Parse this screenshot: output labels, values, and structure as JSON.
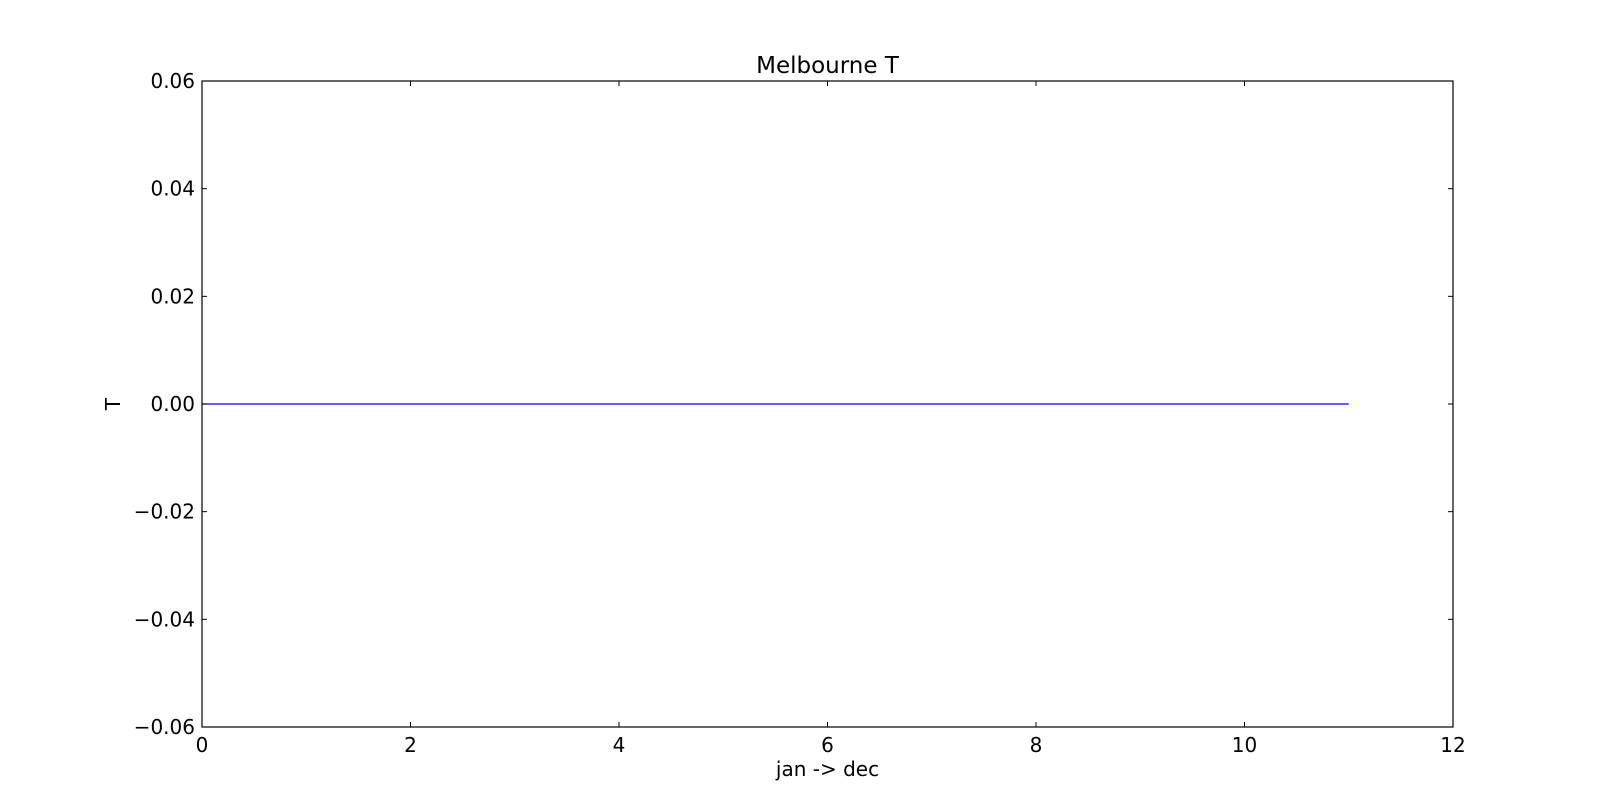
{
  "chart_data": {
    "type": "line",
    "title": "Melbourne T",
    "xlabel": "jan -> dec",
    "ylabel": "T",
    "xlim": [
      0,
      12
    ],
    "ylim": [
      -0.06,
      0.06
    ],
    "x_ticks": [
      0,
      2,
      4,
      6,
      8,
      10,
      12
    ],
    "x_tick_labels": [
      "0",
      "2",
      "4",
      "6",
      "8",
      "10",
      "12"
    ],
    "y_ticks": [
      0.06,
      0.04,
      0.02,
      0.0,
      -0.02,
      -0.04,
      -0.06
    ],
    "y_tick_labels": [
      "0.06",
      "0.04",
      "0.02",
      "0.00",
      "−0.02",
      "−0.04",
      "−0.06"
    ],
    "grid": false,
    "series": [
      {
        "color": "#0000ff",
        "x": [
          0,
          1,
          2,
          3,
          4,
          5,
          6,
          7,
          8,
          9,
          10,
          11
        ],
        "y": [
          0,
          0,
          0,
          0,
          0,
          0,
          0,
          0,
          0,
          0,
          0,
          0
        ]
      }
    ]
  }
}
